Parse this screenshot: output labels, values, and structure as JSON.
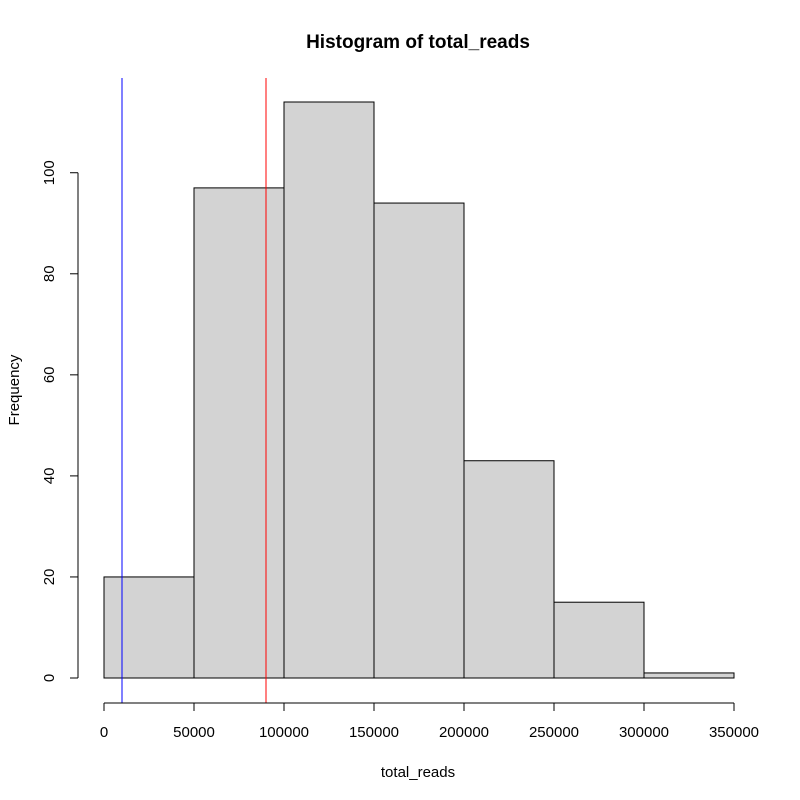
{
  "chart_data": {
    "type": "histogram",
    "title": "Histogram of total_reads",
    "xlabel": "total_reads",
    "ylabel": "Frequency",
    "bins": [
      {
        "from": 0,
        "to": 50000,
        "count": 20
      },
      {
        "from": 50000,
        "to": 100000,
        "count": 97
      },
      {
        "from": 100000,
        "to": 150000,
        "count": 114
      },
      {
        "from": 150000,
        "to": 200000,
        "count": 94
      },
      {
        "from": 200000,
        "to": 250000,
        "count": 43
      },
      {
        "from": 250000,
        "to": 300000,
        "count": 15
      },
      {
        "from": 300000,
        "to": 350000,
        "count": 1
      }
    ],
    "xlim": [
      0,
      350000
    ],
    "ylim": [
      0,
      114
    ],
    "x_ticks": [
      0,
      50000,
      100000,
      150000,
      200000,
      250000,
      300000,
      350000
    ],
    "y_ticks": [
      0,
      20,
      40,
      60,
      80,
      100
    ],
    "vertical_lines": [
      {
        "x": 10000,
        "color": "#0000ff"
      },
      {
        "x": 90000,
        "color": "#ff0000"
      }
    ],
    "bar_fill": "#d3d3d3",
    "bar_stroke": "#000000",
    "grid": false,
    "legend": "none"
  }
}
